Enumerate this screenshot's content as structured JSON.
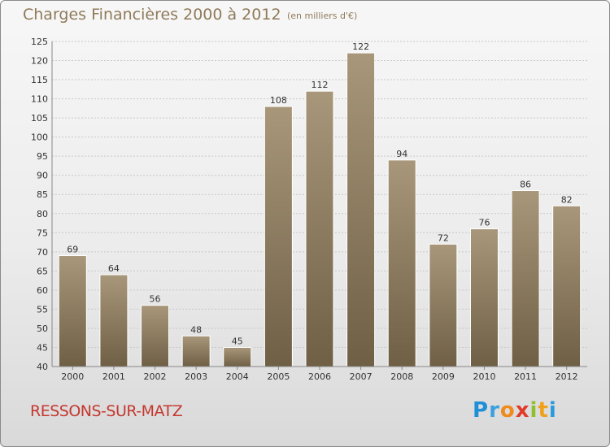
{
  "title": "Charges Financières 2000 à 2012",
  "subtitle": "(en milliers d'€)",
  "commune": "RESSONS-SUR-MATZ",
  "logo": {
    "letters": [
      {
        "ch": "P",
        "color": "#1f8fd8"
      },
      {
        "ch": "r",
        "color": "#3aa0e0"
      },
      {
        "ch": "o",
        "color": "#f08a1c"
      },
      {
        "ch": "x",
        "color": "#e23a2a"
      },
      {
        "ch": "i",
        "color": "#8fbf2a"
      },
      {
        "ch": "t",
        "color": "#f0a11c"
      },
      {
        "ch": "i",
        "color": "#2a9adb"
      }
    ]
  },
  "colors": {
    "bar_top": "#a8977a",
    "bar_bottom": "#6f5f45",
    "text": "#333333",
    "title": "#8f7a5a"
  },
  "chart_data": {
    "type": "bar",
    "title": "Charges Financières 2000 à 2012",
    "subtitle": "(en milliers d'€)",
    "xlabel": "",
    "ylabel": "",
    "categories": [
      "2000",
      "2001",
      "2002",
      "2003",
      "2004",
      "2005",
      "2006",
      "2007",
      "2008",
      "2009",
      "2010",
      "2011",
      "2012"
    ],
    "values": [
      69,
      64,
      56,
      48,
      45,
      108,
      112,
      122,
      94,
      72,
      76,
      86,
      82
    ],
    "ylim": [
      40,
      125
    ],
    "yticks": [
      40,
      45,
      50,
      55,
      60,
      65,
      70,
      75,
      80,
      85,
      90,
      95,
      100,
      105,
      110,
      115,
      120,
      125
    ],
    "grid": true,
    "legend": "none"
  }
}
